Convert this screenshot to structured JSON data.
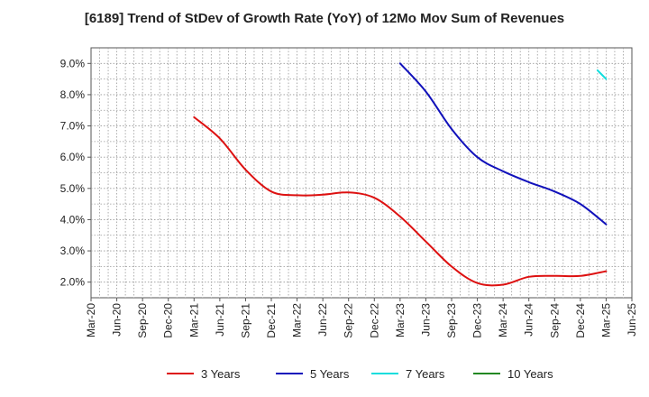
{
  "chart_data": {
    "type": "line",
    "title": "[6189]  Trend of StDev of Growth Rate (YoY) of 12Mo Mov Sum of Revenues",
    "xlabel": "",
    "ylabel": "",
    "ylim": [
      1.5,
      9.5
    ],
    "yticks": [
      2.0,
      3.0,
      4.0,
      5.0,
      6.0,
      7.0,
      8.0,
      9.0
    ],
    "ytick_labels": [
      "2.0%",
      "3.0%",
      "4.0%",
      "5.0%",
      "6.0%",
      "7.0%",
      "8.0%",
      "9.0%"
    ],
    "x_tick_labels": [
      "Mar-20",
      "Jun-20",
      "Sep-20",
      "Dec-20",
      "Mar-21",
      "Jun-21",
      "Sep-21",
      "Dec-21",
      "Mar-22",
      "Jun-22",
      "Sep-22",
      "Dec-22",
      "Mar-23",
      "Jun-23",
      "Sep-23",
      "Dec-23",
      "Mar-24",
      "Jun-24",
      "Sep-24",
      "Dec-24",
      "Mar-25",
      "Jun-25"
    ],
    "grid": true,
    "legend_position": "bottom",
    "series": [
      {
        "name": "3 Years",
        "color": "#dd1111",
        "points": [
          {
            "x": "Mar-21",
            "y": 7.28
          },
          {
            "x": "Jun-21",
            "y": 6.6
          },
          {
            "x": "Sep-21",
            "y": 5.6
          },
          {
            "x": "Dec-21",
            "y": 4.9
          },
          {
            "x": "Mar-22",
            "y": 4.78
          },
          {
            "x": "Jun-22",
            "y": 4.8
          },
          {
            "x": "Sep-22",
            "y": 4.87
          },
          {
            "x": "Dec-22",
            "y": 4.7
          },
          {
            "x": "Mar-23",
            "y": 4.1
          },
          {
            "x": "Jun-23",
            "y": 3.3
          },
          {
            "x": "Sep-23",
            "y": 2.5
          },
          {
            "x": "Dec-23",
            "y": 1.97
          },
          {
            "x": "Mar-24",
            "y": 1.92
          },
          {
            "x": "Jun-24",
            "y": 2.17
          },
          {
            "x": "Sep-24",
            "y": 2.2
          },
          {
            "x": "Dec-24",
            "y": 2.2
          },
          {
            "x": "Mar-25",
            "y": 2.35
          }
        ]
      },
      {
        "name": "5 Years",
        "color": "#1111bb",
        "points": [
          {
            "x": "Mar-23",
            "y": 9.0
          },
          {
            "x": "Jun-23",
            "y": 8.1
          },
          {
            "x": "Sep-23",
            "y": 6.9
          },
          {
            "x": "Dec-23",
            "y": 6.0
          },
          {
            "x": "Mar-24",
            "y": 5.55
          },
          {
            "x": "Jun-24",
            "y": 5.2
          },
          {
            "x": "Sep-24",
            "y": 4.9
          },
          {
            "x": "Dec-24",
            "y": 4.5
          },
          {
            "x": "Mar-25",
            "y": 3.85
          }
        ]
      },
      {
        "name": "7 Years",
        "color": "#11dddd",
        "points": [
          {
            "x": "Feb-25",
            "y": 8.78
          },
          {
            "x": "Mar-25",
            "y": 8.5
          }
        ]
      },
      {
        "name": "10 Years",
        "color": "#228822",
        "points": []
      }
    ]
  }
}
